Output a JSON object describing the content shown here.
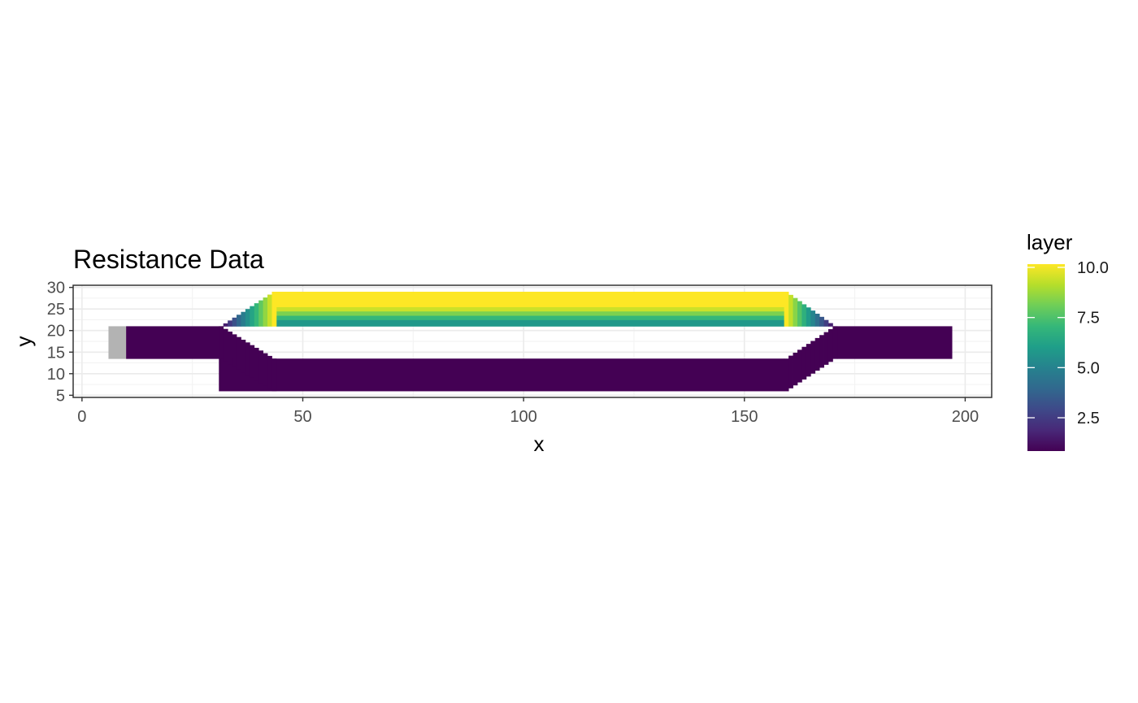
{
  "chart_data": {
    "type": "heatmap",
    "title": "Resistance Data",
    "xlabel": "x",
    "ylabel": "y",
    "xlim": [
      -2,
      206
    ],
    "ylim": [
      4.5,
      30.5
    ],
    "x_ticks": [
      0,
      50,
      100,
      150,
      200
    ],
    "y_ticks": [
      5,
      10,
      15,
      20,
      25,
      30
    ],
    "grid": true,
    "theme": "bw",
    "legend": {
      "title": "layer",
      "position": "right",
      "range": [
        1,
        10
      ],
      "ticks": [
        2.5,
        5.0,
        7.5,
        10.0
      ],
      "tick_labels": [
        "2.5",
        "5.0",
        "7.5",
        "10.0"
      ],
      "palette": "viridis",
      "colors": [
        "#440154",
        "#482878",
        "#3e4989",
        "#31688e",
        "#26828e",
        "#1f9e89",
        "#35b779",
        "#6ece58",
        "#b5de2b",
        "#fde725"
      ]
    },
    "na_color": "#b3b3b3",
    "regions": [
      {
        "name": "source cell (NA)",
        "x": [
          6,
          10
        ],
        "y": [
          13.5,
          21
        ],
        "value": null
      },
      {
        "name": "left inflow channel",
        "x": [
          10,
          31
        ],
        "y": [
          13.5,
          21
        ],
        "value": 1
      },
      {
        "name": "lower branch",
        "x": [
          31,
          159
        ],
        "y": [
          6,
          13.5
        ],
        "value": 1
      },
      {
        "name": "upper branch row y=21",
        "x": [
          44,
          159
        ],
        "y": [
          21,
          22.5
        ],
        "value": 5.8
      },
      {
        "name": "upper branch row y=22",
        "x": [
          44,
          159
        ],
        "y": [
          22.5,
          23.5
        ],
        "value": 7
      },
      {
        "name": "upper branch row y=23",
        "x": [
          44,
          159
        ],
        "y": [
          23.5,
          24.5
        ],
        "value": 8.2
      },
      {
        "name": "upper branch row y=24",
        "x": [
          44,
          159
        ],
        "y": [
          24.5,
          25.5
        ],
        "value": 9.3
      },
      {
        "name": "upper branch rows y=25-29",
        "x": [
          44,
          159
        ],
        "y": [
          25.5,
          29
        ],
        "value": 10
      },
      {
        "name": "right outflow channel",
        "x": [
          171,
          197
        ],
        "y": [
          13.5,
          21
        ],
        "value": 1
      }
    ]
  }
}
